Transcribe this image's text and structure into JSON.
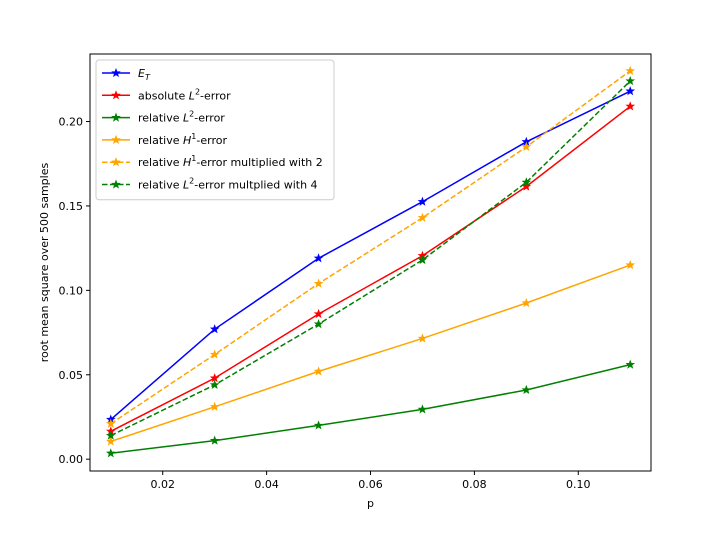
{
  "chart_data": {
    "type": "line",
    "xlabel": "p",
    "ylabel": "root mean square over 500 samples",
    "xlim": [
      0.006,
      0.114
    ],
    "ylim": [
      -0.007,
      0.24
    ],
    "xticks": [
      0.02,
      0.04,
      0.06,
      0.08,
      0.1
    ],
    "xtick_labels": [
      "0.02",
      "0.04",
      "0.06",
      "0.08",
      "0.10"
    ],
    "yticks": [
      0.0,
      0.05,
      0.1,
      0.15,
      0.2
    ],
    "ytick_labels": [
      "0.00",
      "0.05",
      "0.10",
      "0.15",
      "0.20"
    ],
    "legend_position": "top-left",
    "grid": false,
    "x": [
      0.01,
      0.03,
      0.05,
      0.07,
      0.09,
      0.11
    ],
    "series": [
      {
        "name_main": "E",
        "name_sub": "T",
        "name_tail": "",
        "color": "#0000ff",
        "dash": "solid",
        "values": [
          0.0235,
          0.077,
          0.119,
          0.1525,
          0.188,
          0.218
        ]
      },
      {
        "name_main": "absolute L",
        "name_sup": "2",
        "name_tail": "-error",
        "color": "#ff0000",
        "dash": "solid",
        "values": [
          0.0165,
          0.048,
          0.086,
          0.1205,
          0.1615,
          0.209
        ]
      },
      {
        "name_main": "relative L",
        "name_sup": "2",
        "name_tail": "-error",
        "color": "#008000",
        "dash": "solid",
        "values": [
          0.0035,
          0.011,
          0.02,
          0.0295,
          0.041,
          0.056
        ]
      },
      {
        "name_main": "relative H",
        "name_sup": "1",
        "name_tail": "-error",
        "color": "#ffa500",
        "dash": "solid",
        "values": [
          0.0105,
          0.031,
          0.052,
          0.0715,
          0.0925,
          0.115
        ]
      },
      {
        "name_main": "relative H",
        "name_sup": "1",
        "name_tail": "-error multiplied with 2",
        "color": "#ffa500",
        "dash": "dashed",
        "values": [
          0.021,
          0.062,
          0.104,
          0.143,
          0.185,
          0.23
        ]
      },
      {
        "name_main": "relative L",
        "name_sup": "2",
        "name_tail": "-error multplied with 4",
        "color": "#008000",
        "dash": "dashed",
        "values": [
          0.014,
          0.044,
          0.08,
          0.118,
          0.164,
          0.224
        ]
      }
    ]
  }
}
